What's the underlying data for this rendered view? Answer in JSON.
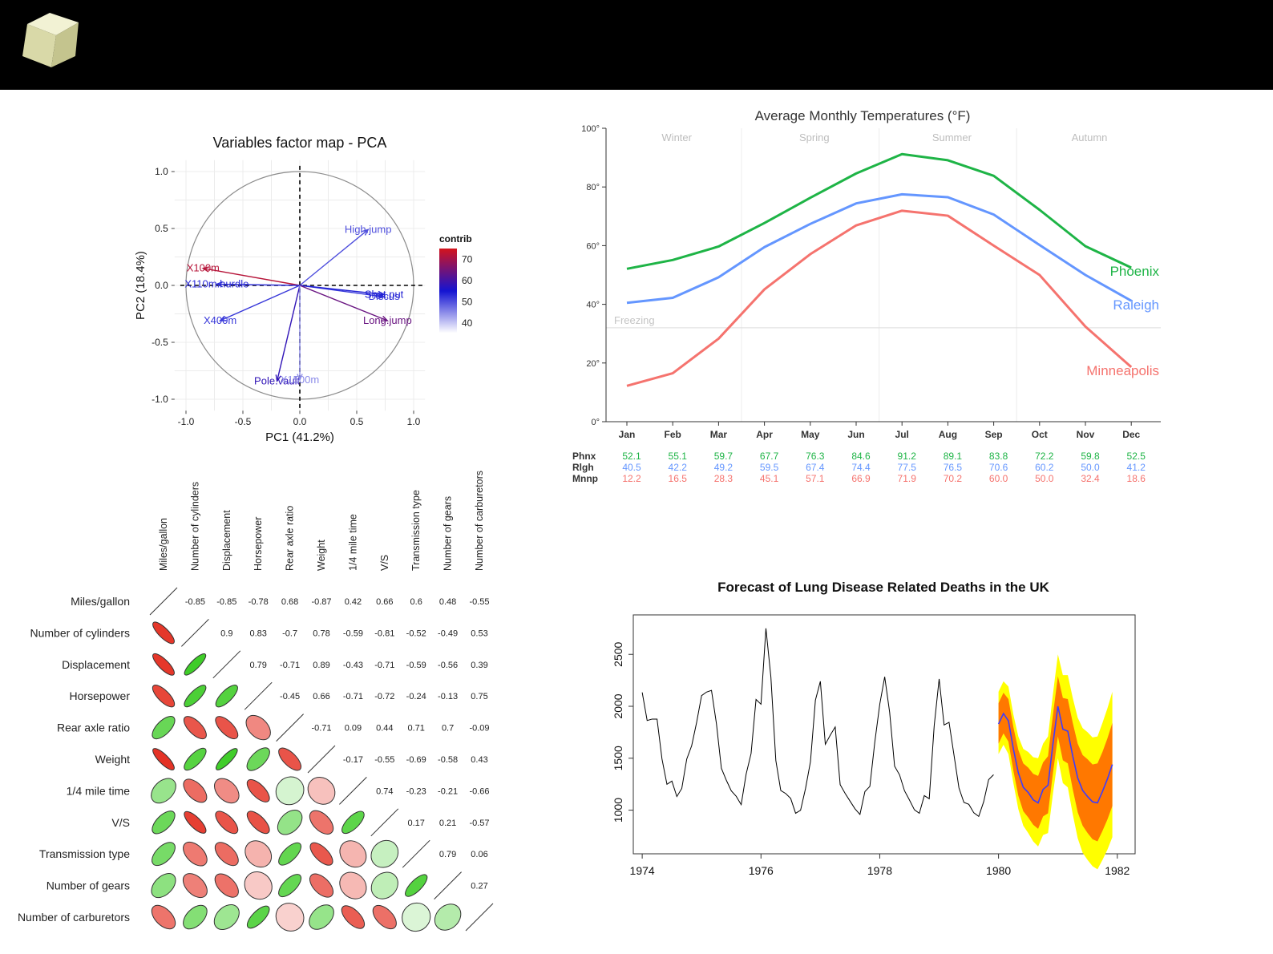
{
  "chart_data": [
    {
      "type": "scatter",
      "subtype": "pca-variable-factor-map",
      "title": "Variables factor map - PCA",
      "xlabel": "PC1 (41.2%)",
      "ylabel": "PC2 (18.4%)",
      "xlim": [
        -1.1,
        1.1
      ],
      "ylim": [
        -1.1,
        1.1
      ],
      "x_ticks": [
        "-1.0",
        "-0.5",
        "0.0",
        "0.5",
        "1.0"
      ],
      "y_ticks": [
        "1.0",
        "0.5",
        "0.0",
        "-0.5",
        "-1.0"
      ],
      "grid": true,
      "legend": {
        "title": "contrib",
        "ticks": [
          "70",
          "60",
          "50",
          "40"
        ],
        "range": [
          35,
          75
        ],
        "placement": "right"
      },
      "variables": [
        {
          "name": "X100m",
          "x": -0.85,
          "y": 0.15,
          "contrib": 72
        },
        {
          "name": "X110m.hurdle",
          "x": -0.73,
          "y": 0.01,
          "contrib": 53
        },
        {
          "name": "X400m",
          "x": -0.7,
          "y": -0.31,
          "contrib": 52
        },
        {
          "name": "High.jump",
          "x": 0.6,
          "y": 0.49,
          "contrib": 50
        },
        {
          "name": "Discus",
          "x": 0.74,
          "y": -0.1,
          "contrib": 52
        },
        {
          "name": "Shot.put",
          "x": 0.74,
          "y": -0.08,
          "contrib": 54
        },
        {
          "name": "Long.jump",
          "x": 0.77,
          "y": -0.31,
          "contrib": 64
        },
        {
          "name": "Pole.vault",
          "x": -0.2,
          "y": -0.84,
          "contrib": 58
        },
        {
          "name": "X1500m",
          "x": 0.0,
          "y": -0.83,
          "contrib": 45
        }
      ],
      "colors": {
        "low": "#ffffff",
        "mid": "#1414d2",
        "high": "#d2141e"
      }
    },
    {
      "type": "line",
      "title": "Average Monthly Temperatures (°F)",
      "categories": [
        "Jan",
        "Feb",
        "Mar",
        "Apr",
        "May",
        "Jun",
        "Jul",
        "Aug",
        "Sep",
        "Oct",
        "Nov",
        "Dec"
      ],
      "ylim": [
        0,
        100
      ],
      "y_ticks": [
        "100°",
        "80°",
        "60°",
        "40°",
        "20°",
        "0°"
      ],
      "seasons": [
        "Winter",
        "Spring",
        "Summer",
        "Autumn"
      ],
      "reference_line": {
        "label": "Freezing",
        "value": 32
      },
      "series": [
        {
          "name": "Phoenix",
          "short": "Phnx",
          "color": "#1eb446",
          "values": [
            52.1,
            55.1,
            59.7,
            67.7,
            76.3,
            84.6,
            91.2,
            89.1,
            83.8,
            72.2,
            59.8,
            52.5
          ]
        },
        {
          "name": "Raleigh",
          "short": "Rlgh",
          "color": "#6496ff",
          "values": [
            40.5,
            42.2,
            49.2,
            59.5,
            67.4,
            74.4,
            77.5,
            76.5,
            70.6,
            60.2,
            50.0,
            41.2
          ]
        },
        {
          "name": "Minneapolis",
          "short": "Mnnp",
          "color": "#f5736e",
          "values": [
            12.2,
            16.5,
            28.3,
            45.1,
            57.1,
            66.9,
            71.9,
            70.2,
            60.0,
            50.0,
            32.4,
            18.6
          ]
        }
      ]
    },
    {
      "type": "heatmap",
      "subtype": "correlation-matrix",
      "variables": [
        "Miles/gallon",
        "Number of cylinders",
        "Displacement",
        "Horsepower",
        "Rear axle ratio",
        "Weight",
        "1/4 mile time",
        "V/S",
        "Transmission type",
        "Number of gears",
        "Number of carburetors"
      ],
      "matrix": [
        [
          1,
          -0.85,
          -0.85,
          -0.78,
          0.68,
          -0.87,
          0.42,
          0.66,
          0.6,
          0.48,
          -0.55
        ],
        [
          -0.85,
          1,
          0.9,
          0.83,
          -0.7,
          0.78,
          -0.59,
          -0.81,
          -0.52,
          -0.49,
          0.53
        ],
        [
          -0.85,
          0.9,
          1,
          0.79,
          -0.71,
          0.89,
          -0.43,
          -0.71,
          -0.59,
          -0.56,
          0.39
        ],
        [
          -0.78,
          0.83,
          0.79,
          1,
          -0.45,
          0.66,
          -0.71,
          -0.72,
          -0.24,
          -0.13,
          0.75
        ],
        [
          0.68,
          -0.7,
          -0.71,
          -0.45,
          1,
          -0.71,
          0.09,
          0.44,
          0.71,
          0.7,
          -0.09
        ],
        [
          -0.87,
          0.78,
          0.89,
          0.66,
          -0.71,
          1,
          -0.17,
          -0.55,
          -0.69,
          -0.58,
          0.43
        ],
        [
          0.42,
          -0.59,
          -0.43,
          -0.71,
          0.09,
          -0.17,
          1,
          0.74,
          -0.23,
          -0.21,
          -0.66
        ],
        [
          0.66,
          -0.81,
          -0.71,
          -0.72,
          0.44,
          -0.55,
          0.74,
          1,
          0.17,
          0.21,
          -0.57
        ],
        [
          0.6,
          -0.52,
          -0.59,
          -0.24,
          0.71,
          -0.69,
          -0.23,
          0.17,
          1,
          0.79,
          0.06
        ],
        [
          0.48,
          -0.49,
          -0.56,
          -0.13,
          0.7,
          -0.58,
          -0.21,
          0.21,
          0.79,
          1,
          0.27
        ],
        [
          -0.55,
          0.53,
          0.39,
          0.75,
          -0.09,
          0.43,
          -0.66,
          -0.57,
          0.06,
          0.27,
          1
        ]
      ],
      "colors": {
        "positive": "#2dc814",
        "negative": "#e1190a"
      }
    },
    {
      "type": "line",
      "subtype": "forecast-fan",
      "title": "Forecast of Lung Disease Related Deaths in the UK",
      "xlim": [
        1973.85,
        1982.3
      ],
      "ylim": [
        580,
        2880
      ],
      "x_ticks": [
        "1974",
        "1976",
        "1978",
        "1980",
        "1982"
      ],
      "y_ticks": [
        "1000",
        "1500",
        "2000",
        "2500"
      ],
      "history": {
        "start": 1974,
        "frequency": 12,
        "values": [
          2134,
          1863,
          1877,
          1877,
          1492,
          1249,
          1280,
          1131,
          1209,
          1492,
          1621,
          1846,
          2103,
          2137,
          2153,
          1833,
          1403,
          1288,
          1186,
          1133,
          1053,
          1347,
          1545,
          2066,
          2020,
          2750,
          2283,
          1479,
          1189,
          1160,
          1113,
          970,
          999,
          1208,
          1467,
          2059,
          2240,
          1634,
          1722,
          1801,
          1246,
          1162,
          1087,
          1013,
          959,
          1179,
          1229,
          1655,
          2019,
          2284,
          1942,
          1423,
          1340,
          1187,
          1098,
          1004,
          970,
          1140,
          1110,
          1812,
          2263,
          1820,
          1846,
          1531,
          1215,
          1075,
          1056,
          975,
          940,
          1081,
          1294,
          1341
        ],
        "color": "#000000"
      },
      "forecast": {
        "start": 1980,
        "frequency": 12,
        "mean": [
          1830,
          1930,
          1860,
          1590,
          1360,
          1220,
          1170,
          1100,
          1070,
          1200,
          1240,
          1640,
          2000,
          1780,
          1760,
          1520,
          1310,
          1190,
          1130,
          1080,
          1070,
          1180,
          1300,
          1440
        ],
        "inner": [
          [
            1640,
            2030
          ],
          [
            1740,
            2130
          ],
          [
            1660,
            2070
          ],
          [
            1380,
            1800
          ],
          [
            1140,
            1580
          ],
          [
            990,
            1450
          ],
          [
            930,
            1410
          ],
          [
            860,
            1350
          ],
          [
            820,
            1330
          ],
          [
            940,
            1460
          ],
          [
            970,
            1520
          ],
          [
            1360,
            1920
          ],
          [
            1710,
            2290
          ],
          [
            1480,
            2080
          ],
          [
            1450,
            2070
          ],
          [
            1200,
            1840
          ],
          [
            980,
            1640
          ],
          [
            850,
            1530
          ],
          [
            780,
            1490
          ],
          [
            720,
            1440
          ],
          [
            700,
            1450
          ],
          [
            800,
            1560
          ],
          [
            910,
            1690
          ],
          [
            1040,
            1840
          ]
        ],
        "outer": [
          [
            1540,
            2140
          ],
          [
            1630,
            2240
          ],
          [
            1540,
            2190
          ],
          [
            1260,
            1920
          ],
          [
            1010,
            1710
          ],
          [
            850,
            1590
          ],
          [
            780,
            1560
          ],
          [
            700,
            1510
          ],
          [
            650,
            1500
          ],
          [
            760,
            1640
          ],
          [
            780,
            1710
          ],
          [
            1160,
            2120
          ],
          [
            1500,
            2500
          ],
          [
            1260,
            2300
          ],
          [
            1220,
            2300
          ],
          [
            960,
            2080
          ],
          [
            730,
            1890
          ],
          [
            590,
            1790
          ],
          [
            520,
            1750
          ],
          [
            460,
            1700
          ],
          [
            430,
            1710
          ],
          [
            520,
            1840
          ],
          [
            620,
            1980
          ],
          [
            740,
            2140
          ]
        ],
        "colors": {
          "mean": "#3c3cff",
          "inner": "#ff7800",
          "outer": "#ffff00"
        }
      }
    }
  ]
}
